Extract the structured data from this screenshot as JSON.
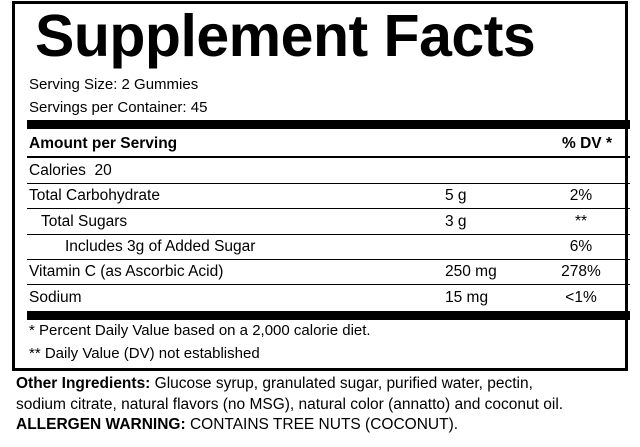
{
  "title": "Supplement Facts",
  "serving_size": "Serving Size: 2 Gummies",
  "servings_per_container": "Servings per Container: 45",
  "header": {
    "amount": "Amount per Serving",
    "dv": "% DV *"
  },
  "rows": [
    {
      "name": "Calories  20",
      "amount": "",
      "dv": "",
      "indent": 0
    },
    {
      "name": "Total Carbohydrate",
      "amount": "5 g",
      "dv": "2%",
      "indent": 0
    },
    {
      "name": "Total Sugars",
      "amount": "3 g",
      "dv": "**",
      "indent": 1
    },
    {
      "name": "Includes 3g of Added Sugar",
      "amount": "",
      "dv": "6%",
      "indent": 2
    },
    {
      "name": "Vitamin C (as Ascorbic Acid)",
      "amount": "250 mg",
      "dv": "278%",
      "indent": 0
    },
    {
      "name": "Sodium",
      "amount": "15 mg",
      "dv": "<1%",
      "indent": 0
    }
  ],
  "footnotes": [
    "* Percent Daily Value based on a 2,000 calorie diet.",
    "** Daily Value (DV) not established"
  ],
  "other_ingredients": {
    "label": "Other Ingredients:",
    "line1": " Glucose syrup, granulated sugar, purified water, pectin,",
    "line2": "sodium citrate, natural flavors (no MSG), natural color (annatto) and coconut oil."
  },
  "allergen": {
    "label": "ALLERGEN WARNING:",
    "text": " CONTAINS TREE NUTS (COCONUT)."
  }
}
